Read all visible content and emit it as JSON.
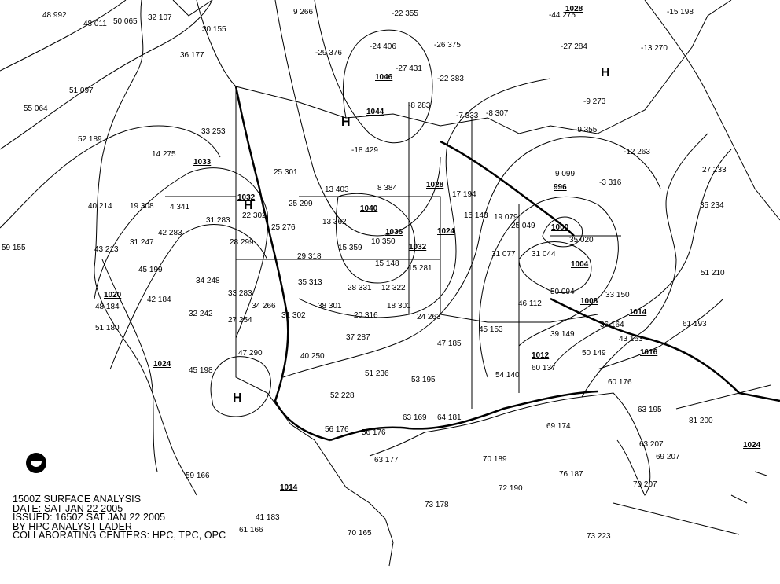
{
  "caption": {
    "line1": "1500Z SURFACE ANALYSIS",
    "line2": "DATE: SAT JAN 22 2005",
    "line3": "ISSUED: 1650Z SAT JAN 22 2005",
    "line4": "BY HPC ANALYST LADER",
    "line5": "COLLABORATING CENTERS: HPC, TPC, OPC"
  },
  "logo": "NOAA",
  "pressure_centers": [
    "H",
    "H",
    "H",
    "H"
  ],
  "isobar_labels": [
    "1028",
    "1033",
    "1032",
    "1040",
    "1036",
    "1032",
    "1028",
    "1024",
    "1046",
    "1044",
    "1020",
    "1024",
    "1014",
    "1024",
    "1000",
    "1004",
    "996",
    "1008",
    "1012",
    "1014",
    "1016"
  ],
  "stations": [
    "48 992",
    "48 011",
    "50 065",
    "32 107",
    "30 155",
    "9 266",
    "-22 355",
    "-44 275",
    "-15 198",
    "55 064",
    "51 097",
    "36 177",
    "-29 376",
    "-24 406",
    "-26 375",
    "-27 284",
    "-13 270",
    "-27 431",
    "-22 383",
    "-8 283",
    "-9 273",
    "52 189",
    "14 275",
    "33 253",
    "-7 333",
    "-8 307",
    "-9 355",
    "-12 263",
    "27 233",
    "25 301",
    "-18 429",
    "13 403",
    "8 384",
    "17 194",
    "19 079",
    "9 099",
    "-3 316",
    "35 234",
    "40 214",
    "19 308",
    "4 341",
    "31 283",
    "22 302",
    "25 299",
    "13 362",
    "15 359",
    "10 350",
    "15 148",
    "25 276",
    "15 143",
    "25 049",
    "35 020",
    "59 155",
    "43 213",
    "31 247",
    "42 283",
    "28 299",
    "29 318",
    "35 313",
    "28 331",
    "12 322",
    "15 281",
    "31 077",
    "31 044",
    "51 210",
    "45 199",
    "34 248",
    "33 283",
    "38 301",
    "31 302",
    "20 316",
    "18 301",
    "24 263",
    "46 112",
    "50 094",
    "33 150",
    "61 193",
    "48 184",
    "51 180",
    "42 184",
    "32 242",
    "27 254",
    "34 266",
    "37 287",
    "47 185",
    "45 153",
    "39 149",
    "36 164",
    "43 163",
    "45 198",
    "47 290",
    "40 250",
    "51 236",
    "53 195",
    "60 137",
    "54 140",
    "50 149",
    "60 176",
    "52 228",
    "56 176",
    "56 176",
    "63 169",
    "64 181",
    "69 174",
    "63 195",
    "81 200",
    "70 189",
    "72 190",
    "76 187",
    "70 207",
    "63 207",
    "69 207",
    "73 178",
    "70 165",
    "63 177",
    "41 183",
    "59 166",
    "61 166",
    "73 223"
  ],
  "colors": {
    "ink": "#000000",
    "background": "#ffffff"
  }
}
